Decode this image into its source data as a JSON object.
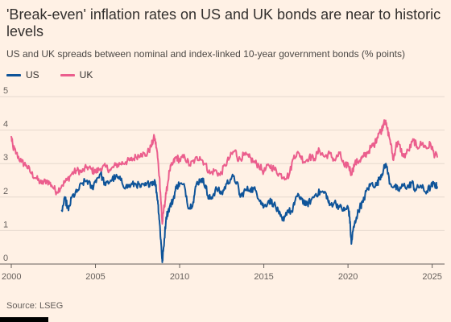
{
  "title": "'Break-even' inflation rates on US and UK bonds are near to historic levels",
  "subtitle": "US and UK spreads between nominal and index-linked 10-year government bonds (% points)",
  "source": "Source: LSEG",
  "colors": {
    "US": "#0f5499",
    "UK": "#eb5e8d",
    "grid": "#e6d9ce",
    "axis": "#66605c",
    "background": "#fff1e5"
  },
  "chart_data": {
    "type": "line",
    "title": "'Break-even' inflation rates on US and UK bonds are near to historic levels",
    "subtitle": "US and UK spreads between nominal and index-linked 10-year government bonds (% points)",
    "xlabel": "",
    "ylabel": "",
    "xlim": [
      2000,
      2025.4
    ],
    "ylim": [
      0,
      5
    ],
    "x_ticks": [
      2000,
      2005,
      2010,
      2015,
      2020,
      2025
    ],
    "x_tick_labels": [
      "2000",
      "2005",
      "2010",
      "2015",
      "2020",
      "2025"
    ],
    "y_ticks": [
      0,
      1,
      2,
      3,
      4,
      5
    ],
    "y_tick_labels": [
      "0",
      "1",
      "2",
      "3",
      "4",
      "5"
    ],
    "grid": true,
    "legend": "top-left",
    "series": [
      {
        "name": "US",
        "points": [
          [
            2003.0,
            1.6
          ],
          [
            2003.2,
            1.95
          ],
          [
            2003.4,
            1.6
          ],
          [
            2003.6,
            2.0
          ],
          [
            2003.9,
            2.15
          ],
          [
            2004.2,
            2.4
          ],
          [
            2004.5,
            2.5
          ],
          [
            2004.8,
            2.25
          ],
          [
            2005.0,
            2.5
          ],
          [
            2005.3,
            2.7
          ],
          [
            2005.6,
            2.35
          ],
          [
            2005.9,
            2.5
          ],
          [
            2006.2,
            2.6
          ],
          [
            2006.5,
            2.5
          ],
          [
            2006.8,
            2.3
          ],
          [
            2007.1,
            2.35
          ],
          [
            2007.4,
            2.4
          ],
          [
            2007.7,
            2.3
          ],
          [
            2008.0,
            2.35
          ],
          [
            2008.3,
            2.45
          ],
          [
            2008.55,
            2.45
          ],
          [
            2008.7,
            1.9
          ],
          [
            2008.8,
            1.3
          ],
          [
            2008.9,
            0.6
          ],
          [
            2008.97,
            0.05
          ],
          [
            2009.05,
            0.5
          ],
          [
            2009.2,
            1.4
          ],
          [
            2009.4,
            1.7
          ],
          [
            2009.6,
            1.9
          ],
          [
            2009.8,
            2.3
          ],
          [
            2010.0,
            2.4
          ],
          [
            2010.3,
            2.3
          ],
          [
            2010.55,
            1.65
          ],
          [
            2010.8,
            1.85
          ],
          [
            2011.0,
            2.4
          ],
          [
            2011.3,
            2.55
          ],
          [
            2011.55,
            2.35
          ],
          [
            2011.7,
            1.95
          ],
          [
            2011.9,
            2.0
          ],
          [
            2012.2,
            2.25
          ],
          [
            2012.5,
            2.1
          ],
          [
            2012.8,
            2.4
          ],
          [
            2013.1,
            2.6
          ],
          [
            2013.4,
            2.45
          ],
          [
            2013.6,
            2.0
          ],
          [
            2013.9,
            2.2
          ],
          [
            2014.2,
            2.25
          ],
          [
            2014.5,
            2.2
          ],
          [
            2014.8,
            1.9
          ],
          [
            2015.0,
            1.7
          ],
          [
            2015.3,
            1.9
          ],
          [
            2015.6,
            1.8
          ],
          [
            2015.9,
            1.5
          ],
          [
            2016.1,
            1.3
          ],
          [
            2016.4,
            1.6
          ],
          [
            2016.7,
            1.55
          ],
          [
            2016.9,
            2.0
          ],
          [
            2017.2,
            2.0
          ],
          [
            2017.5,
            1.75
          ],
          [
            2017.8,
            1.9
          ],
          [
            2018.1,
            2.1
          ],
          [
            2018.4,
            2.15
          ],
          [
            2018.7,
            2.1
          ],
          [
            2018.9,
            1.75
          ],
          [
            2019.2,
            1.85
          ],
          [
            2019.5,
            1.7
          ],
          [
            2019.8,
            1.6
          ],
          [
            2020.0,
            1.7
          ],
          [
            2020.1,
            1.4
          ],
          [
            2020.2,
            0.6
          ],
          [
            2020.3,
            1.0
          ],
          [
            2020.5,
            1.4
          ],
          [
            2020.7,
            1.7
          ],
          [
            2020.9,
            1.85
          ],
          [
            2021.1,
            2.2
          ],
          [
            2021.4,
            2.4
          ],
          [
            2021.7,
            2.35
          ],
          [
            2021.9,
            2.6
          ],
          [
            2022.1,
            2.8
          ],
          [
            2022.25,
            3.0
          ],
          [
            2022.5,
            2.4
          ],
          [
            2022.8,
            2.3
          ],
          [
            2023.0,
            2.2
          ],
          [
            2023.3,
            2.35
          ],
          [
            2023.6,
            2.3
          ],
          [
            2023.8,
            2.45
          ],
          [
            2024.0,
            2.2
          ],
          [
            2024.3,
            2.35
          ],
          [
            2024.6,
            2.15
          ],
          [
            2024.9,
            2.3
          ],
          [
            2025.1,
            2.4
          ],
          [
            2025.3,
            2.3
          ]
        ]
      },
      {
        "name": "UK",
        "points": [
          [
            2000.0,
            3.8
          ],
          [
            2000.1,
            3.5
          ],
          [
            2000.3,
            3.3
          ],
          [
            2000.6,
            3.05
          ],
          [
            2000.9,
            2.95
          ],
          [
            2001.2,
            2.7
          ],
          [
            2001.5,
            2.55
          ],
          [
            2001.8,
            2.4
          ],
          [
            2002.1,
            2.5
          ],
          [
            2002.4,
            2.35
          ],
          [
            2002.7,
            2.15
          ],
          [
            2003.0,
            2.35
          ],
          [
            2003.3,
            2.5
          ],
          [
            2003.6,
            2.7
          ],
          [
            2003.9,
            2.8
          ],
          [
            2004.2,
            2.75
          ],
          [
            2004.5,
            2.9
          ],
          [
            2004.8,
            2.8
          ],
          [
            2005.0,
            2.75
          ],
          [
            2005.3,
            2.85
          ],
          [
            2005.6,
            2.9
          ],
          [
            2005.9,
            2.8
          ],
          [
            2006.2,
            2.95
          ],
          [
            2006.5,
            3.0
          ],
          [
            2006.8,
            3.05
          ],
          [
            2007.1,
            3.1
          ],
          [
            2007.4,
            3.2
          ],
          [
            2007.7,
            3.3
          ],
          [
            2008.0,
            3.25
          ],
          [
            2008.3,
            3.5
          ],
          [
            2008.5,
            3.8
          ],
          [
            2008.65,
            3.4
          ],
          [
            2008.8,
            2.6
          ],
          [
            2008.9,
            1.8
          ],
          [
            2008.97,
            1.2
          ],
          [
            2009.05,
            1.6
          ],
          [
            2009.2,
            2.1
          ],
          [
            2009.4,
            2.8
          ],
          [
            2009.6,
            3.0
          ],
          [
            2009.8,
            3.2
          ],
          [
            2010.0,
            3.1
          ],
          [
            2010.3,
            3.2
          ],
          [
            2010.6,
            2.95
          ],
          [
            2010.9,
            3.1
          ],
          [
            2011.2,
            3.2
          ],
          [
            2011.5,
            3.0
          ],
          [
            2011.8,
            2.7
          ],
          [
            2012.1,
            2.8
          ],
          [
            2012.4,
            2.65
          ],
          [
            2012.7,
            2.95
          ],
          [
            2013.0,
            3.2
          ],
          [
            2013.3,
            3.4
          ],
          [
            2013.5,
            3.1
          ],
          [
            2013.8,
            3.25
          ],
          [
            2014.1,
            3.2
          ],
          [
            2014.4,
            3.05
          ],
          [
            2014.7,
            2.95
          ],
          [
            2015.0,
            2.75
          ],
          [
            2015.3,
            2.95
          ],
          [
            2015.6,
            2.85
          ],
          [
            2015.9,
            2.7
          ],
          [
            2016.2,
            2.6
          ],
          [
            2016.5,
            2.65
          ],
          [
            2016.8,
            3.25
          ],
          [
            2017.1,
            3.3
          ],
          [
            2017.4,
            3.05
          ],
          [
            2017.7,
            3.2
          ],
          [
            2018.0,
            3.15
          ],
          [
            2018.3,
            3.4
          ],
          [
            2018.6,
            3.2
          ],
          [
            2018.9,
            3.3
          ],
          [
            2019.2,
            3.1
          ],
          [
            2019.5,
            3.3
          ],
          [
            2019.8,
            2.9
          ],
          [
            2020.0,
            3.0
          ],
          [
            2020.2,
            2.7
          ],
          [
            2020.4,
            3.0
          ],
          [
            2020.7,
            3.1
          ],
          [
            2020.9,
            3.2
          ],
          [
            2021.1,
            3.3
          ],
          [
            2021.4,
            3.5
          ],
          [
            2021.6,
            3.6
          ],
          [
            2021.8,
            3.9
          ],
          [
            2022.0,
            4.0
          ],
          [
            2022.15,
            4.3
          ],
          [
            2022.3,
            4.1
          ],
          [
            2022.5,
            3.7
          ],
          [
            2022.7,
            3.1
          ],
          [
            2022.85,
            3.55
          ],
          [
            2023.0,
            3.6
          ],
          [
            2023.3,
            3.2
          ],
          [
            2023.6,
            3.4
          ],
          [
            2023.9,
            3.7
          ],
          [
            2024.1,
            3.5
          ],
          [
            2024.4,
            3.6
          ],
          [
            2024.7,
            3.45
          ],
          [
            2024.9,
            3.6
          ],
          [
            2025.1,
            3.3
          ],
          [
            2025.3,
            3.2
          ]
        ]
      }
    ]
  }
}
